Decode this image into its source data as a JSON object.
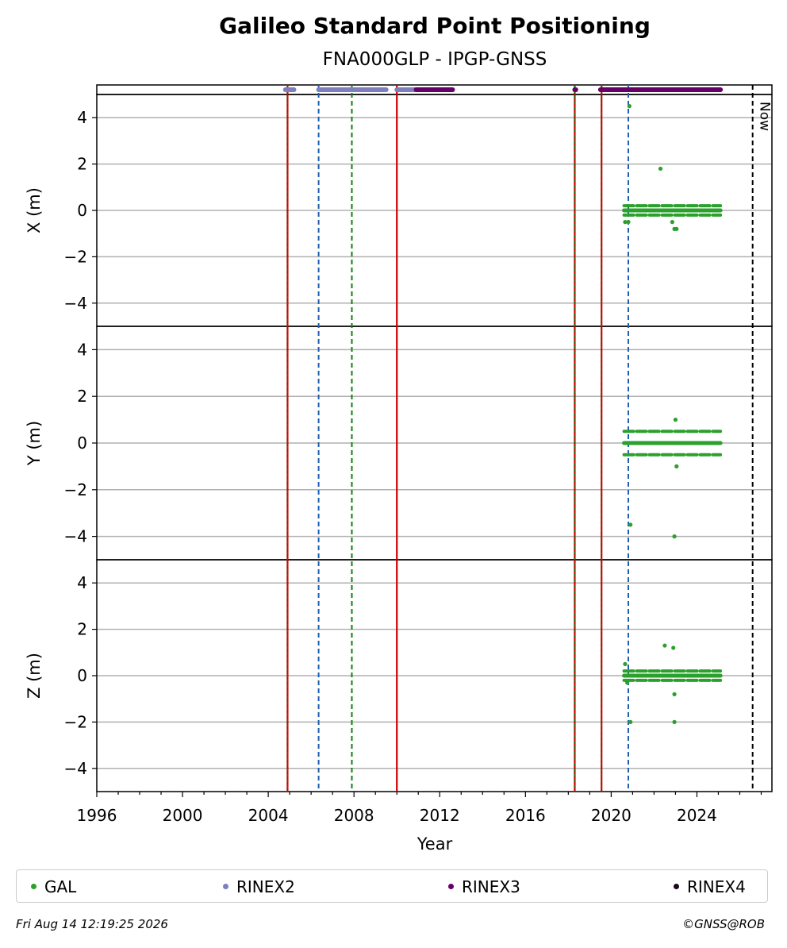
{
  "title": "Galileo Standard Point Positioning",
  "subtitle": "FNA000GLP - IPGP-GNSS",
  "footer_left": "Fri Aug 14 12:19:25 2026",
  "footer_right": "©GNSS@ROB",
  "legend": [
    {
      "label": "GAL",
      "color": "#2ca02c"
    },
    {
      "label": "RINEX2",
      "color": "#7f7fbf"
    },
    {
      "label": "RINEX3",
      "color": "#660066"
    },
    {
      "label": "RINEX4",
      "color": "#1a0a1a"
    }
  ],
  "chart_data": {
    "type": "scatter",
    "xlabel": "Year",
    "xlim": [
      1996,
      2027.5
    ],
    "xticks": [
      "1996",
      "2000",
      "2004",
      "2008",
      "2012",
      "2016",
      "2020",
      "2024"
    ],
    "yticks": [
      "4",
      "2",
      "0",
      "−2",
      "−4"
    ],
    "ylim": [
      -5,
      5
    ],
    "grid": "horizontal",
    "now_year": 2026.6,
    "now_label": "Now",
    "panels": [
      {
        "ylabel": "X (m)"
      },
      {
        "ylabel": "Y (m)"
      },
      {
        "ylabel": "Z (m)"
      }
    ],
    "event_lines": [
      {
        "x": 2004.9,
        "style": "red-green"
      },
      {
        "x": 2006.35,
        "style": "blue-dashed"
      },
      {
        "x": 2007.9,
        "style": "green-dashed"
      },
      {
        "x": 2010.0,
        "style": "red-solid"
      },
      {
        "x": 2018.3,
        "style": "red-green"
      },
      {
        "x": 2019.55,
        "style": "red-green"
      },
      {
        "x": 2020.8,
        "style": "blue-dashed"
      }
    ],
    "availability": [
      {
        "name": "RINEX2",
        "segments": [
          [
            2004.8,
            2005.2
          ],
          [
            2006.35,
            2009.5
          ],
          [
            2010.0,
            2010.9
          ]
        ]
      },
      {
        "name": "RINEX3",
        "segments": [
          [
            2010.9,
            2012.6
          ],
          [
            2018.3,
            2018.35
          ],
          [
            2019.5,
            2025.1
          ]
        ]
      }
    ],
    "series": [
      {
        "name": "GAL",
        "panel": "X (m)",
        "band": {
          "x": [
            2020.6,
            2025.1
          ],
          "levels": [
            -0.2,
            0.0,
            0.2
          ]
        },
        "outliers": [
          [
            2020.65,
            -0.5
          ],
          [
            2020.8,
            -0.5
          ],
          [
            2020.85,
            4.5
          ],
          [
            2022.3,
            1.8
          ],
          [
            2022.85,
            -0.5
          ],
          [
            2022.95,
            -0.8
          ],
          [
            2023.05,
            -0.8
          ]
        ]
      },
      {
        "name": "GAL",
        "panel": "Y (m)",
        "band": {
          "x": [
            2020.6,
            2025.1
          ],
          "levels": [
            -0.5,
            0.0,
            0.5
          ]
        },
        "outliers": [
          [
            2020.9,
            -3.5
          ],
          [
            2022.95,
            -4.0
          ],
          [
            2023.05,
            -1.0
          ],
          [
            2023.0,
            1.0
          ]
        ]
      },
      {
        "name": "GAL",
        "panel": "Z (m)",
        "band": {
          "x": [
            2020.6,
            2025.1
          ],
          "levels": [
            -0.2,
            0.0,
            0.2
          ]
        },
        "outliers": [
          [
            2020.65,
            0.5
          ],
          [
            2020.9,
            -2.0
          ],
          [
            2020.75,
            -0.3
          ],
          [
            2022.5,
            1.3
          ],
          [
            2022.9,
            1.2
          ],
          [
            2022.95,
            -0.8
          ],
          [
            2022.95,
            -2.0
          ]
        ]
      }
    ]
  }
}
